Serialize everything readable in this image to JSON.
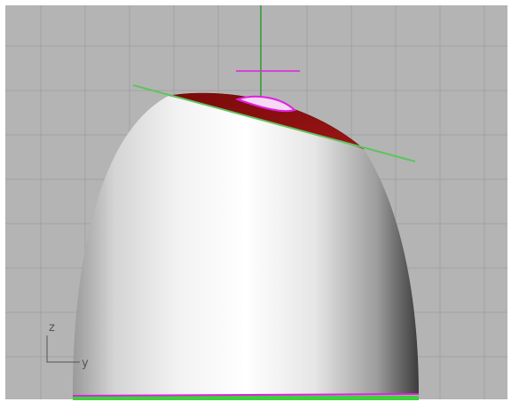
{
  "viewport": {
    "axis_labels": {
      "vertical": "z",
      "horizontal": "y"
    }
  }
}
